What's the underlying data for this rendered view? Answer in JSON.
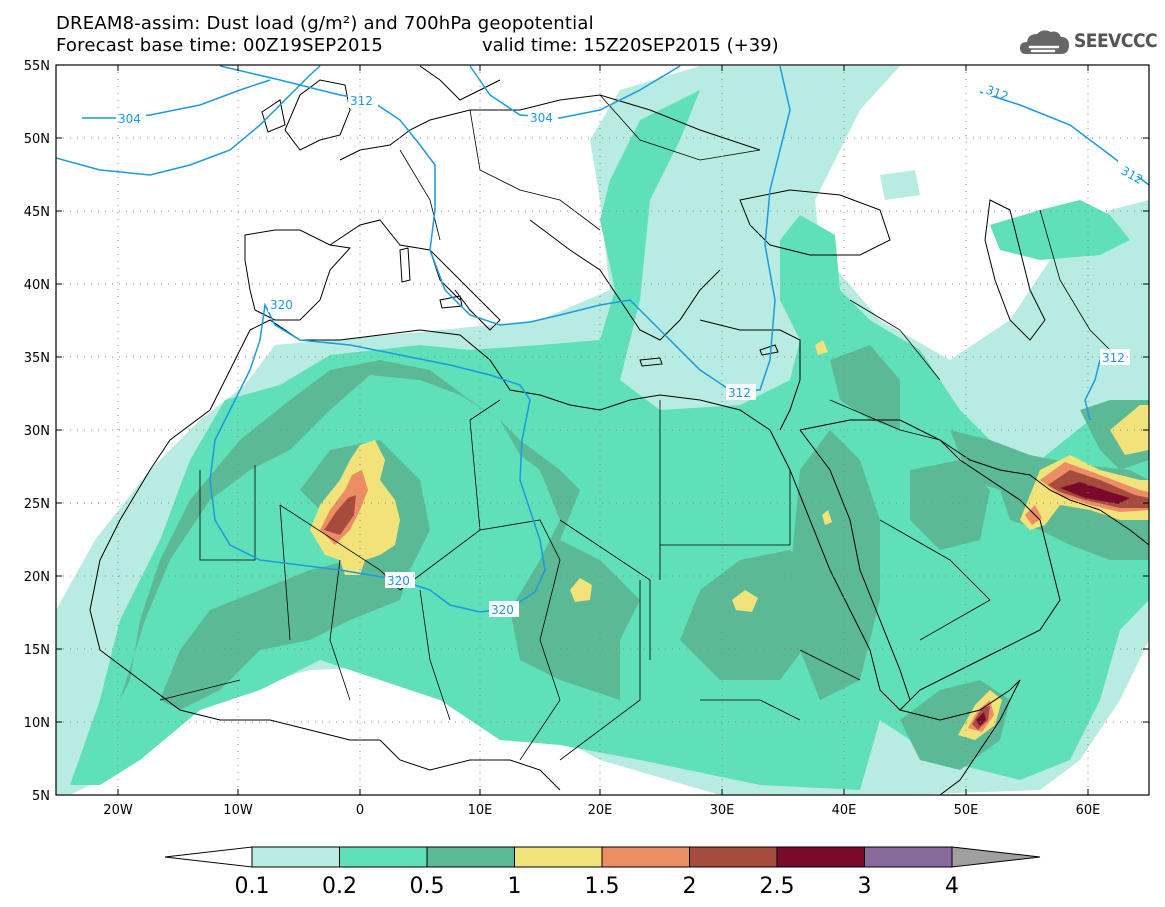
{
  "header": {
    "title_line_1": "DREAM8-assim: Dust load (g/m²) and 700hPa geopotential",
    "title_line_2": "Forecast base time: 00Z19SEP2015",
    "valid_time": "valid time: 15Z20SEP2015 (+39)"
  },
  "logo": {
    "text": "SEEVCCC",
    "icon": "cloud-icon"
  },
  "map": {
    "lat_labels": [
      "55N",
      "50N",
      "45N",
      "40N",
      "35N",
      "30N",
      "25N",
      "20N",
      "15N",
      "10N",
      "5N"
    ],
    "lon_labels": [
      "20W",
      "10W",
      "0",
      "10E",
      "20E",
      "30E",
      "40E",
      "50E",
      "60E"
    ],
    "geopotential_labels": [
      {
        "text": "304"
      },
      {
        "text": "312"
      },
      {
        "text": "304"
      },
      {
        "text": "312"
      },
      {
        "text": "312"
      },
      {
        "text": "320"
      },
      {
        "text": "312"
      },
      {
        "text": "312"
      },
      {
        "text": "320"
      },
      {
        "text": "320"
      }
    ],
    "colors": {
      "land_border": "#000000",
      "contour": "#1a9ae0",
      "gridline": "#888888"
    }
  },
  "colorbar": {
    "labels": [
      "0.1",
      "0.2",
      "0.5",
      "1",
      "1.5",
      "2",
      "2.5",
      "3",
      "4"
    ],
    "colors": [
      "#ffffff",
      "#b8ece2",
      "#5fe0b8",
      "#5cb996",
      "#f2e27a",
      "#ec8d64",
      "#a64c3e",
      "#7a0a2a",
      "#8a6a9c",
      "#a0a0a0"
    ]
  },
  "dust_levels": {
    "l1": "#b8ece2",
    "l2": "#5fe0b8",
    "l3": "#5cb996",
    "l4": "#f2e27a",
    "l5": "#ec8d64",
    "l6": "#a64c3e",
    "l7": "#7a0a2a"
  }
}
